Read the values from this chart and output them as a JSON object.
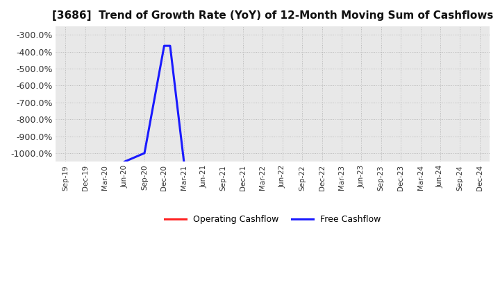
{
  "title": "[3686]  Trend of Growth Rate (YoY) of 12-Month Moving Sum of Cashflows",
  "ylim": [
    -1050,
    -250
  ],
  "yticks": [
    -1000,
    -900,
    -800,
    -700,
    -600,
    -500,
    -400,
    -300
  ],
  "background_color": "#e8e8e8",
  "grid_color": "#999999",
  "x_labels": [
    "Sep-19",
    "Dec-19",
    "Mar-20",
    "Jun-20",
    "Sep-20",
    "Dec-20",
    "Mar-21",
    "Jun-21",
    "Sep-21",
    "Dec-21",
    "Mar-22",
    "Jun-22",
    "Sep-22",
    "Dec-22",
    "Mar-23",
    "Jun-23",
    "Sep-23",
    "Dec-23",
    "Mar-24",
    "Jun-24",
    "Sep-24",
    "Dec-24"
  ],
  "operating_cashflow": {
    "color": "#ff2222",
    "label": "Operating Cashflow",
    "x_indices": [],
    "y_values": []
  },
  "free_cashflow": {
    "color": "#1a1aff",
    "label": "Free Cashflow",
    "x_indices": [
      3,
      4,
      5,
      5.3,
      6
    ],
    "y_values": [
      -1050,
      -1000,
      -365,
      -365,
      -1050
    ]
  },
  "legend_position": "lower center",
  "linewidth": 2.2
}
